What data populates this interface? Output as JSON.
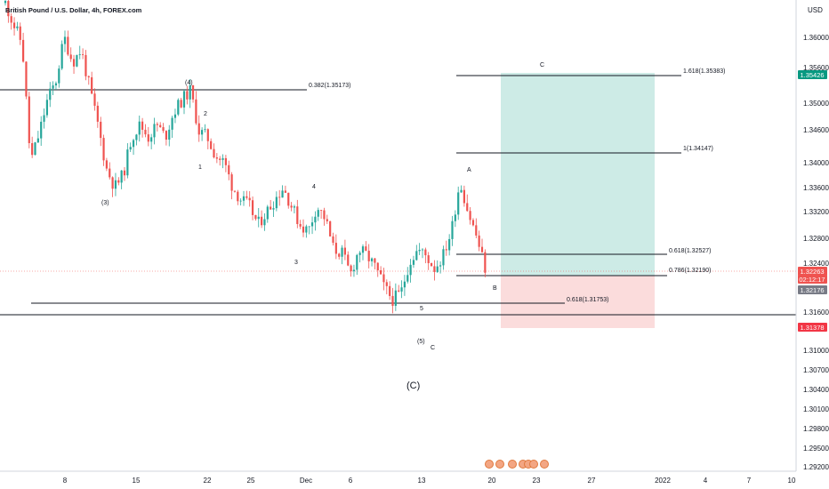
{
  "title": "British Pound / U.S. Dollar, 4h, FOREX.com",
  "currency": "USD",
  "colors": {
    "up": "#26a69a",
    "down": "#ef5350",
    "target_zone": "#cdebe6",
    "stop_zone": "#fbdcdc",
    "price_badge": "#ef5350",
    "target_badge": "#089981",
    "stop_badge": "#f23645"
  },
  "chart_data": {
    "type": "candlestick",
    "y_axis": {
      "ticks": [
        "1.36000",
        "1.35600",
        "1.35000",
        "1.34600",
        "1.34000",
        "1.33600",
        "1.33200",
        "1.32800",
        "1.32400",
        "1.31600",
        "1.31000",
        "1.30700",
        "1.30400",
        "1.30100",
        "1.29800",
        "1.29500",
        "1.29200"
      ]
    },
    "x_axis": {
      "ticks": [
        "8",
        "15",
        "22",
        "25",
        "Dec",
        "6",
        "13",
        "20",
        "23",
        "27",
        "2022",
        "4",
        "7",
        "10"
      ]
    },
    "ohlc_path": [
      1.3655,
      1.362,
      1.359,
      1.34,
      1.3445,
      1.35,
      1.353,
      1.36,
      1.356,
      1.358,
      1.352,
      1.346,
      1.339,
      1.336,
      1.338,
      1.344,
      1.346,
      1.344,
      1.346,
      1.344,
      1.348,
      1.35,
      1.3515,
      1.345,
      1.344,
      1.341,
      1.34,
      1.336,
      1.334,
      1.333,
      1.33,
      1.332,
      1.334,
      1.336,
      1.333,
      1.33,
      1.329,
      1.333,
      1.331,
      1.326,
      1.3255,
      1.322,
      1.326,
      1.325,
      1.323,
      1.32,
      1.318,
      1.319,
      1.324,
      1.326,
      1.325,
      1.323,
      1.325,
      1.329,
      1.337,
      1.332,
      1.328,
      1.323
    ],
    "levels": [
      {
        "label": "0.382(1.35173)",
        "price": 1.35173
      },
      {
        "label": "1.618(1.35383)",
        "price": 1.35383
      },
      {
        "label": "1(1.34147)",
        "price": 1.34147
      },
      {
        "label": "0.618(1.32527)",
        "price": 1.32527
      },
      {
        "label": "0.786(1.32190)",
        "price": 1.3219
      },
      {
        "label": "0.618(1.31753)",
        "price": 1.31753
      }
    ],
    "wave_labels": [
      "(4)",
      "2",
      "1",
      "(3)",
      "4",
      "3",
      "5",
      "(5)",
      "C",
      "A",
      "B",
      "C",
      "(C)"
    ],
    "price_badges": [
      {
        "text": "1.35426",
        "kind": "target"
      },
      {
        "text": "1.32263",
        "kind": "price"
      },
      {
        "text": "02:12:17",
        "kind": "price"
      },
      {
        "text": "1.32176",
        "kind": "stop_grey"
      },
      {
        "text": "1.31378",
        "kind": "stop"
      }
    ]
  }
}
